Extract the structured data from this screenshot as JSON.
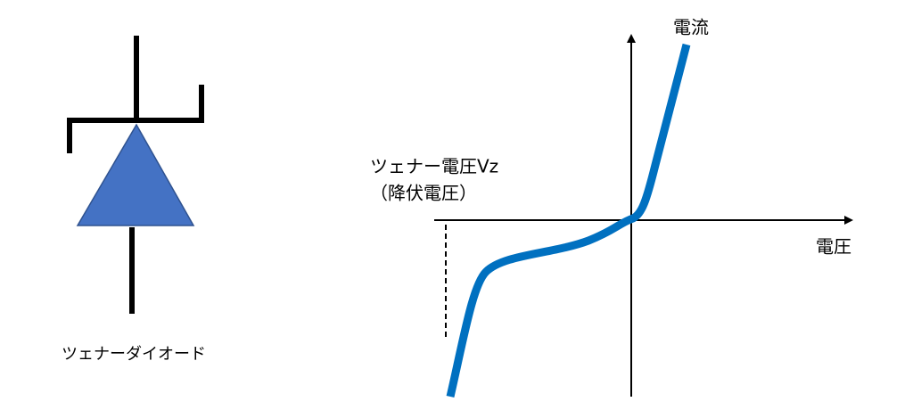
{
  "symbol": {
    "label": "ツェナーダイオード"
  },
  "graph": {
    "y_axis_label": "電流",
    "x_axis_label": "電圧",
    "annotation": [
      "ツェナー電圧Vz",
      "（降伏電圧）"
    ]
  }
}
